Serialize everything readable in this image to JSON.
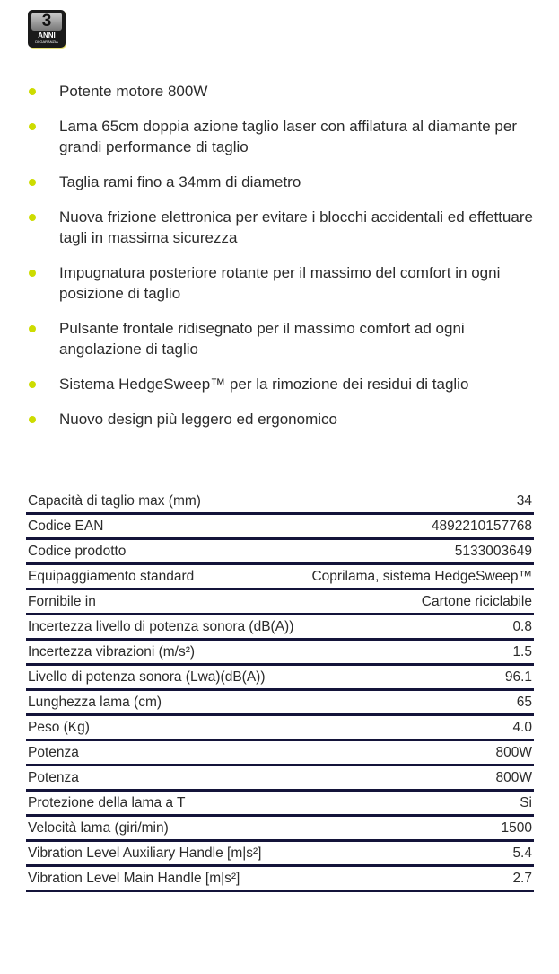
{
  "badge": {
    "number": "3",
    "label": "ANNI",
    "sublabel": "DI GARANZIA"
  },
  "features": [
    "Potente motore 800W",
    "Lama 65cm doppia azione taglio laser con affilatura al diamante per grandi performance di taglio",
    "Taglia rami fino a 34mm di diametro",
    "Nuova frizione elettronica per evitare i blocchi accidentali ed effettuare tagli in massima sicurezza",
    "Impugnatura posteriore rotante per il massimo del comfort in ogni posizione di taglio",
    "Pulsante frontale ridisegnato per il massimo comfort ad ogni angolazione di taglio",
    "Sistema HedgeSweep™ per la rimozione dei residui di taglio",
    "Nuovo design più leggero ed ergonomico"
  ],
  "specs": [
    {
      "label": "Capacità di taglio max (mm)",
      "value": "34"
    },
    {
      "label": "Codice EAN",
      "value": "4892210157768"
    },
    {
      "label": "Codice prodotto",
      "value": "5133003649"
    },
    {
      "label": "Equipaggiamento standard",
      "value": "Coprilama, sistema HedgeSweep™"
    },
    {
      "label": "Fornibile in",
      "value": "Cartone riciclabile"
    },
    {
      "label": "Incertezza livello di potenza sonora (dB(A))",
      "value": "0.8"
    },
    {
      "label": "Incertezza vibrazioni (m/s²)",
      "value": "1.5"
    },
    {
      "label": "Livello di potenza sonora (Lwa)(dB(A))",
      "value": "96.1"
    },
    {
      "label": "Lunghezza lama (cm)",
      "value": "65"
    },
    {
      "label": "Peso (Kg)",
      "value": "4.0"
    },
    {
      "label": "Potenza",
      "value": "800W"
    },
    {
      "label": "Potenza",
      "value": "800W"
    },
    {
      "label": "Protezione della lama a T",
      "value": "Si"
    },
    {
      "label": "Velocità lama (giri/min)",
      "value": "1500"
    },
    {
      "label": "Vibration Level Auxiliary Handle [m|s²]",
      "value": "5.4"
    },
    {
      "label": "Vibration Level Main Handle [m|s²]",
      "value": "2.7"
    }
  ],
  "colors": {
    "bullet": "#cddc00",
    "rule": "#14143a"
  }
}
